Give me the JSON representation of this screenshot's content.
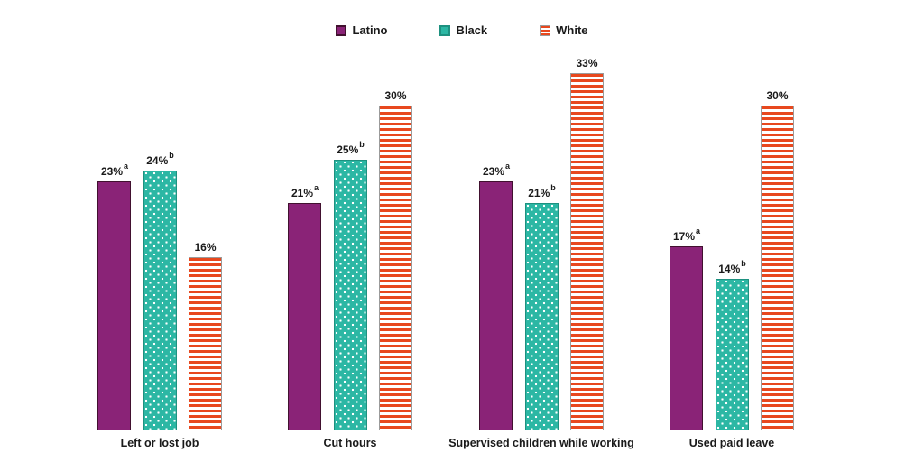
{
  "legend": {
    "items": [
      {
        "label": "Latino",
        "swatch": "purple-solid-swatch"
      },
      {
        "label": "Black",
        "swatch": "teal-dotted-swatch"
      },
      {
        "label": "White",
        "swatch": "orange-striped-swatch"
      }
    ]
  },
  "chart_data": {
    "type": "bar",
    "categories": [
      "Left or lost job",
      "Cut hours",
      "Supervised children while working",
      "Used paid leave"
    ],
    "series": [
      {
        "name": "Latino",
        "values": [
          23,
          21,
          23,
          17
        ],
        "superscript": "a",
        "color": "#8A2377",
        "pattern": "solid"
      },
      {
        "name": "Black",
        "values": [
          24,
          25,
          21,
          14
        ],
        "superscript": "b",
        "color": "#2CB7A4",
        "pattern": "dots"
      },
      {
        "name": "White",
        "values": [
          16,
          30,
          33,
          30
        ],
        "superscript": "",
        "color": "#E8481E",
        "pattern": "hstripes"
      }
    ],
    "value_suffix": "%",
    "title": "",
    "xlabel": "",
    "ylabel": "",
    "ylim": [
      0,
      35
    ],
    "grid": false,
    "axes_visible": false,
    "legend_position": "top-center",
    "data_labels": true
  }
}
